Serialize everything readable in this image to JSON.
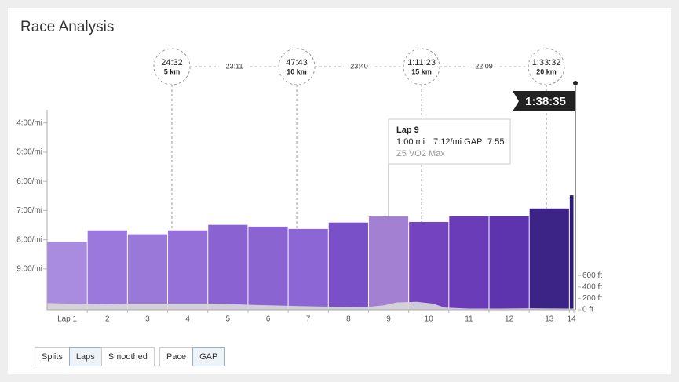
{
  "title": "Race Analysis",
  "chart_data": {
    "type": "bar",
    "categories": [
      "Lap 1",
      "2",
      "3",
      "4",
      "5",
      "6",
      "7",
      "8",
      "9",
      "10",
      "11",
      "12",
      "13",
      "14"
    ],
    "values": [
      8.08,
      7.68,
      7.81,
      7.68,
      7.49,
      7.55,
      7.63,
      7.41,
      7.2,
      7.39,
      7.2,
      7.2,
      6.93,
      6.48
    ],
    "lap_distances": [
      1,
      1,
      1,
      1,
      1,
      1,
      1,
      1,
      1,
      1,
      1,
      1,
      1,
      0.11
    ],
    "colors": [
      "#a98be0",
      "#9b78dc",
      "#9a78da",
      "#9470d8",
      "#8a62d2",
      "#8a64d0",
      "#8c66d4",
      "#7a50c8",
      "#a480d2",
      "#7444c0",
      "#6a3cb8",
      "#5e34ae",
      "#3c2487",
      "#2e1c7a"
    ],
    "ylim": [
      10.4,
      3.55
    ],
    "yticks": [
      {
        "value": 4,
        "label": "4:00/mi"
      },
      {
        "value": 5,
        "label": "5:00/mi"
      },
      {
        "value": 6,
        "label": "6:00/mi"
      },
      {
        "value": 7,
        "label": "7:00/mi"
      },
      {
        "value": 8,
        "label": "8:00/mi"
      },
      {
        "value": 9,
        "label": "9:00/mi"
      }
    ],
    "y2lim": [
      0,
      3500
    ],
    "y2ticks": [
      {
        "value": 0,
        "label": "0 ft"
      },
      {
        "value": 200,
        "label": "200 ft"
      },
      {
        "value": 400,
        "label": "400 ft"
      },
      {
        "value": 600,
        "label": "600 ft"
      }
    ],
    "elevation": {
      "color": "#d9d9d9",
      "x": [
        0,
        0.5,
        1,
        1.5,
        2,
        3,
        4,
        4.5,
        5,
        6,
        7,
        8,
        8.4,
        8.7,
        9.2,
        9.6,
        9.9,
        10.5,
        11,
        12,
        13,
        13.11
      ],
      "values": [
        120,
        110,
        105,
        100,
        110,
        110,
        110,
        105,
        90,
        70,
        55,
        50,
        80,
        130,
        140,
        110,
        40,
        20,
        20,
        25,
        20,
        20
      ]
    },
    "splits": [
      {
        "time": "24:32",
        "distance": "5 km",
        "mi": 3.107
      },
      {
        "time": "47:43",
        "distance": "10 km",
        "mi": 6.214
      },
      {
        "time": "1:11:23",
        "distance": "15 km",
        "mi": 9.321
      },
      {
        "time": "1:33:32",
        "distance": "20 km",
        "mi": 12.427
      }
    ],
    "split_intervals": [
      "23:11",
      "23:40",
      "22:09"
    ],
    "finish": {
      "time": "1:38:35",
      "mi": 13.11
    },
    "tooltip": {
      "lap": 8,
      "title": "Lap 9",
      "distance": "1.00 mi",
      "gap": "7:12/mi GAP",
      "time": "7:55",
      "zone": "Z5 VO2 Max"
    }
  },
  "controls": {
    "view": [
      "Splits",
      "Laps",
      "Smoothed"
    ],
    "view_active": 1,
    "metric": [
      "Pace",
      "GAP"
    ],
    "metric_active": 1
  }
}
